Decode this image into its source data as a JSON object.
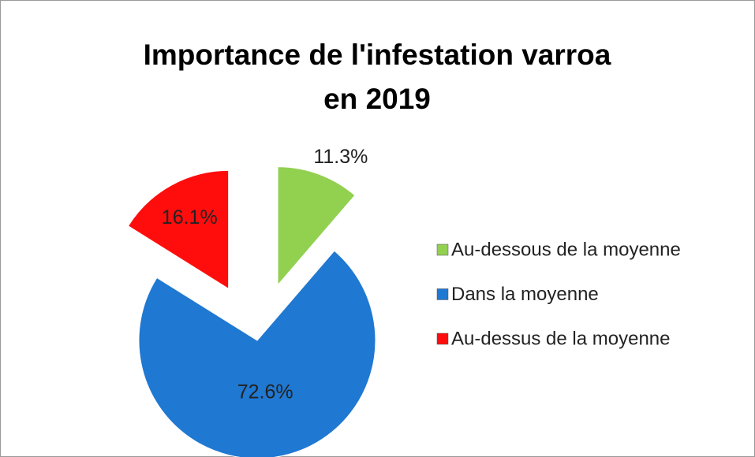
{
  "chart_data": {
    "type": "pie",
    "title": [
      "Importance de l'infestation varroa",
      "en 2019"
    ],
    "categories": [
      "Au-dessous de la moyenne",
      "Dans la moyenne",
      "Au-dessus de la moyenne"
    ],
    "values": [
      11.3,
      72.6,
      16.1
    ],
    "value_labels": [
      "11.3%",
      "72.6%",
      "16.1%"
    ],
    "colors": [
      "#92d050",
      "#1f78d1",
      "#ff0d0d"
    ],
    "exploded": [
      true,
      false,
      true
    ],
    "legend": "right"
  }
}
